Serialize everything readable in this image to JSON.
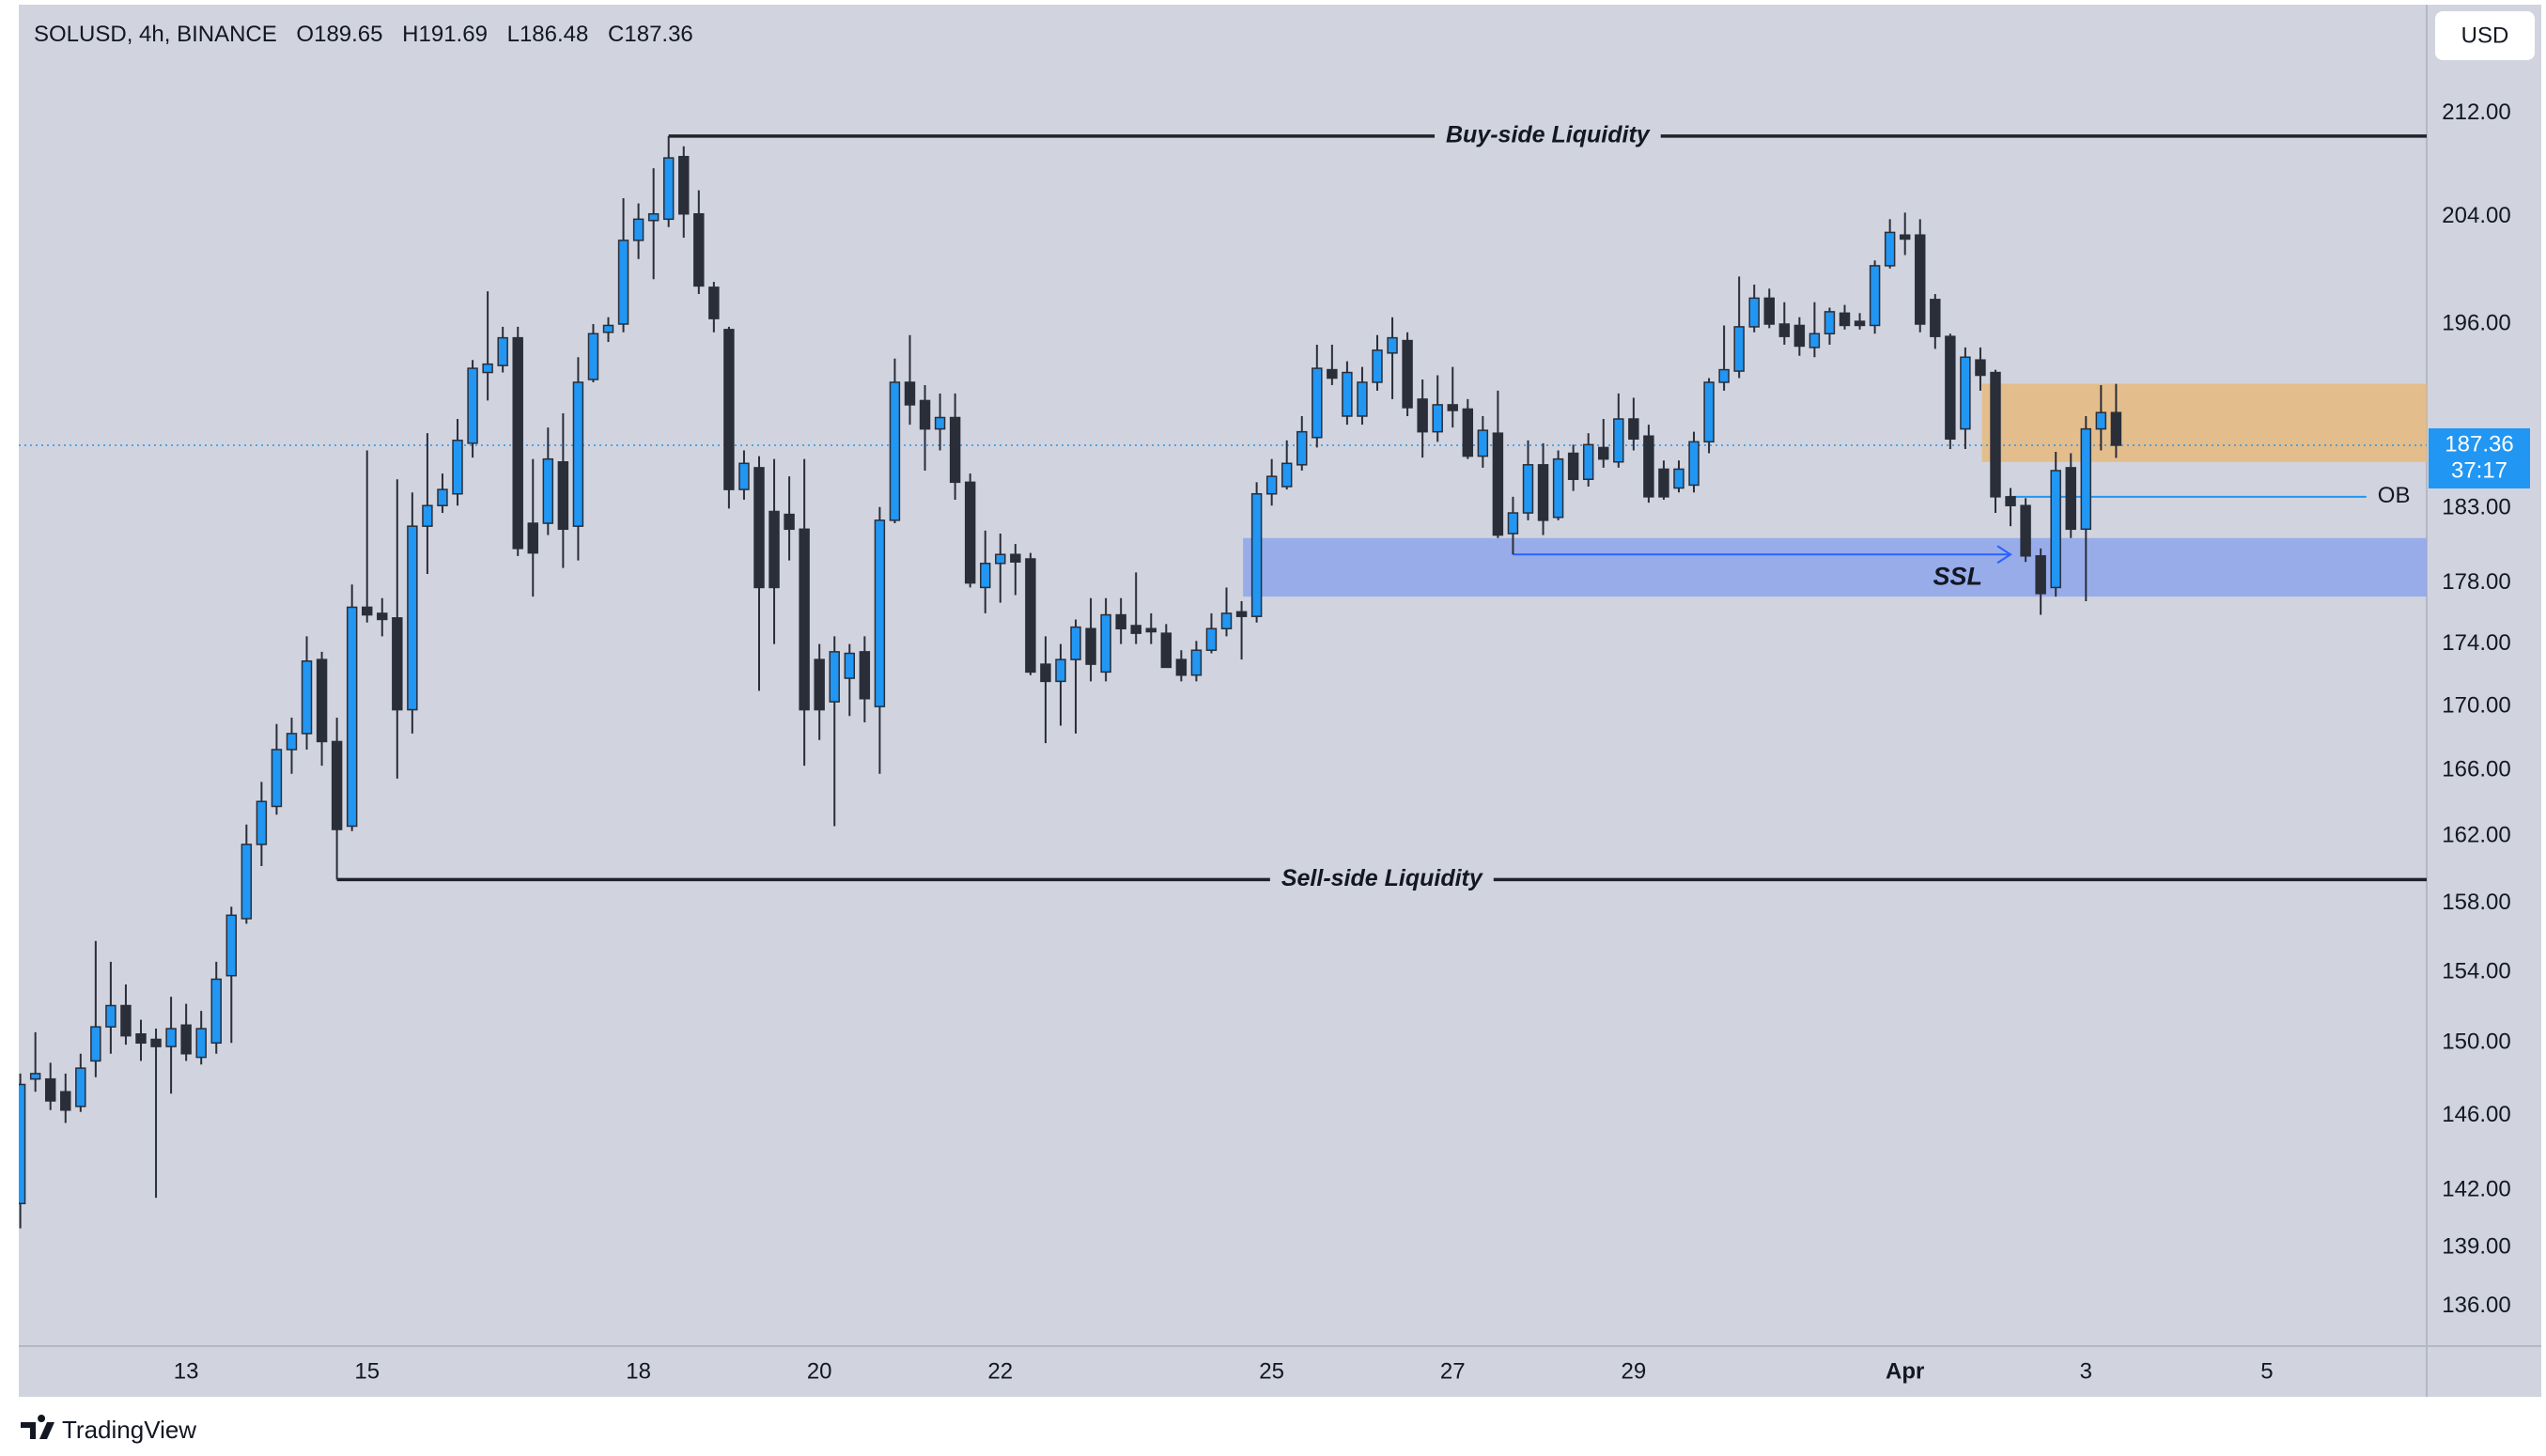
{
  "chart_data": {
    "type": "candlestick",
    "symbol": "SOLUSD, 4h, BINANCE",
    "ohlc_labels": [
      "O",
      "H",
      "L",
      "C"
    ],
    "currency": "USD",
    "countdown": "37:17",
    "up_color": "#2196f3",
    "down_color": "#2a2e39",
    "log_scale": true,
    "grid": false,
    "ylim": [
      134,
      220.5
    ],
    "yticks": [
      {
        "value": 136,
        "label": "136.00"
      },
      {
        "value": 139,
        "label": "139.00"
      },
      {
        "value": 142,
        "label": "142.00"
      },
      {
        "value": 146,
        "label": "146.00"
      },
      {
        "value": 150,
        "label": "150.00"
      },
      {
        "value": 154,
        "label": "154.00"
      },
      {
        "value": 158,
        "label": "158.00"
      },
      {
        "value": 162,
        "label": "162.00"
      },
      {
        "value": 166,
        "label": "166.00"
      },
      {
        "value": 170,
        "label": "170.00"
      },
      {
        "value": 174,
        "label": "174.00"
      },
      {
        "value": 178,
        "label": "178.00"
      },
      {
        "value": 183,
        "label": "183.00"
      },
      {
        "value": 196,
        "label": "196.00"
      },
      {
        "value": 204,
        "label": "204.00"
      },
      {
        "value": 212,
        "label": "212.00"
      }
    ],
    "xlim": [
      -0.1,
      159.6
    ],
    "xticks": [
      {
        "value": 11,
        "label": "13"
      },
      {
        "value": 23,
        "label": "15"
      },
      {
        "value": 41,
        "label": "18"
      },
      {
        "value": 53,
        "label": "20"
      },
      {
        "value": 65,
        "label": "22"
      },
      {
        "value": 83,
        "label": "25"
      },
      {
        "value": 95,
        "label": "27"
      },
      {
        "value": 107,
        "label": "29"
      },
      {
        "value": 125,
        "label": "Apr"
      },
      {
        "value": 137,
        "label": "3"
      },
      {
        "value": 149,
        "label": "5"
      }
    ],
    "candles": [
      [
        141.3,
        148.3,
        140,
        147.7
      ],
      [
        148,
        150.6,
        147.3,
        148.3
      ],
      [
        148,
        148.9,
        146.3,
        146.8
      ],
      [
        147.3,
        148.3,
        145.6,
        146.3
      ],
      [
        146.5,
        149.4,
        146.2,
        148.6
      ],
      [
        149,
        155.8,
        148.1,
        150.9
      ],
      [
        150.9,
        154.6,
        149.4,
        152.1
      ],
      [
        152.1,
        153.3,
        149.9,
        150.4
      ],
      [
        150.5,
        151.3,
        149,
        150
      ],
      [
        150.2,
        150.8,
        141.6,
        149.8
      ],
      [
        149.8,
        152.6,
        147.2,
        150.8
      ],
      [
        151,
        152.2,
        149,
        149.4
      ],
      [
        149.2,
        151.8,
        148.8,
        150.8
      ],
      [
        150,
        154.6,
        149.4,
        153.6
      ],
      [
        153.8,
        157.8,
        150,
        157.3
      ],
      [
        157.1,
        162.7,
        156.8,
        161.5
      ],
      [
        161.5,
        165.3,
        160.2,
        164.1
      ],
      [
        163.8,
        168.9,
        163.3,
        167.3
      ],
      [
        167.3,
        169.3,
        165.8,
        168.3
      ],
      [
        168.3,
        174.5,
        167.3,
        172.9
      ],
      [
        173,
        173.5,
        166.3,
        167.8
      ],
      [
        167.8,
        169.3,
        159.4,
        162.4
      ],
      [
        162.6,
        177.9,
        162.3,
        176.4
      ],
      [
        176.4,
        187,
        175.4,
        175.9
      ],
      [
        176,
        177,
        174.5,
        175.6
      ],
      [
        175.7,
        185,
        165.5,
        169.8
      ],
      [
        169.8,
        184.1,
        168.3,
        181.8
      ],
      [
        181.8,
        188.2,
        178.6,
        183.2
      ],
      [
        183.2,
        185.4,
        182.7,
        184.3
      ],
      [
        184,
        189.2,
        183.2,
        187.7
      ],
      [
        187.5,
        193.4,
        186.5,
        192.8
      ],
      [
        192.5,
        198.4,
        190.5,
        193.1
      ],
      [
        193,
        195.8,
        192.5,
        195
      ],
      [
        195,
        195.8,
        179.8,
        180.3
      ],
      [
        182,
        186.4,
        177.1,
        180
      ],
      [
        182,
        188.6,
        181.2,
        186.4
      ],
      [
        186.2,
        189.6,
        179,
        181.6
      ],
      [
        181.8,
        193.6,
        179.5,
        191.8
      ],
      [
        192,
        196,
        191.8,
        195.3
      ],
      [
        195.4,
        196.5,
        194.7,
        195.9
      ],
      [
        196,
        205.4,
        195.4,
        202.2
      ],
      [
        202.2,
        205,
        200.8,
        203.8
      ],
      [
        203.7,
        207.7,
        199.3,
        204.2
      ],
      [
        203.8,
        210.2,
        203.2,
        208.5
      ],
      [
        208.6,
        209.4,
        202.4,
        204.2
      ],
      [
        204.2,
        206,
        198.2,
        198.8
      ],
      [
        198.7,
        199.1,
        195.4,
        196.4
      ],
      [
        195.6,
        195.8,
        183,
        184.3
      ],
      [
        184.3,
        187,
        183.6,
        186.1
      ],
      [
        185.8,
        186.6,
        171,
        177.7
      ],
      [
        182.8,
        186.4,
        174,
        177.7
      ],
      [
        182.6,
        185.2,
        179.5,
        181.6
      ],
      [
        181.6,
        186.4,
        166.3,
        169.8
      ],
      [
        173,
        174,
        167.9,
        169.8
      ],
      [
        170.3,
        174.5,
        162.6,
        173.5
      ],
      [
        171.8,
        174,
        169.4,
        173.4
      ],
      [
        173.5,
        174.5,
        169,
        170.5
      ],
      [
        170,
        183.1,
        165.8,
        182.2
      ],
      [
        182.2,
        193.5,
        182,
        191.8
      ],
      [
        191.8,
        195.2,
        188.8,
        190.2
      ],
      [
        190.5,
        191.6,
        185.6,
        188.5
      ],
      [
        188.5,
        191,
        187,
        189.3
      ],
      [
        189.3,
        191,
        183.6,
        184.8
      ],
      [
        184.8,
        185.4,
        177.7,
        178
      ],
      [
        177.7,
        181.5,
        176,
        179.3
      ],
      [
        179.3,
        181.3,
        176.7,
        179.9
      ],
      [
        179.9,
        180.6,
        177.2,
        179.4
      ],
      [
        179.6,
        180,
        172,
        172.2
      ],
      [
        172.7,
        174.5,
        167.7,
        171.6
      ],
      [
        171.6,
        174,
        168.8,
        173
      ],
      [
        173,
        175.6,
        168.3,
        175.1
      ],
      [
        175,
        177,
        171.6,
        172.7
      ],
      [
        172.2,
        177,
        171.6,
        175.9
      ],
      [
        175.9,
        177,
        174,
        175
      ],
      [
        175.2,
        178.7,
        174,
        174.7
      ],
      [
        175,
        176,
        174,
        174.8
      ],
      [
        174.7,
        175.3,
        172.5,
        172.5
      ],
      [
        173,
        173.6,
        171.6,
        172
      ],
      [
        172,
        174.2,
        171.6,
        173.6
      ],
      [
        173.6,
        176,
        173.4,
        175
      ],
      [
        175,
        177.7,
        174.5,
        176
      ],
      [
        176.1,
        176.8,
        173,
        175.8
      ],
      [
        175.8,
        184.8,
        175.4,
        184
      ],
      [
        184,
        186.4,
        183.2,
        185.2
      ],
      [
        184.5,
        187.7,
        184.3,
        186.1
      ],
      [
        186,
        189.4,
        185.6,
        188.3
      ],
      [
        187.9,
        194.5,
        187.2,
        192.8
      ],
      [
        192.7,
        194.5,
        191.6,
        192.1
      ],
      [
        189.4,
        193.3,
        188.8,
        192.5
      ],
      [
        189.4,
        192.9,
        188.8,
        191.8
      ],
      [
        191.8,
        195.2,
        191.2,
        194.1
      ],
      [
        193.9,
        196.5,
        190.6,
        195
      ],
      [
        194.8,
        195.4,
        189.4,
        190
      ],
      [
        190.6,
        192,
        186.5,
        188.3
      ],
      [
        188.3,
        192.3,
        187.6,
        190.2
      ],
      [
        190.2,
        192.9,
        188.6,
        189.8
      ],
      [
        189.9,
        190.6,
        186.4,
        186.6
      ],
      [
        186.6,
        189.4,
        185.8,
        188.4
      ],
      [
        188.2,
        191.2,
        181,
        181.2
      ],
      [
        181.3,
        183.8,
        179.9,
        182.7
      ],
      [
        182.7,
        187.7,
        182.2,
        186
      ],
      [
        186,
        187.5,
        181.2,
        182.2
      ],
      [
        182.4,
        187,
        182.2,
        186.4
      ],
      [
        186.8,
        187.4,
        184.2,
        185
      ],
      [
        185,
        188.2,
        184.5,
        187.4
      ],
      [
        187.2,
        189.2,
        185.8,
        186.4
      ],
      [
        186.2,
        191,
        185.8,
        189.2
      ],
      [
        189.2,
        190.7,
        187,
        187.8
      ],
      [
        188,
        188.8,
        183.4,
        183.8
      ],
      [
        185.7,
        186.3,
        183.6,
        183.8
      ],
      [
        184.4,
        186.3,
        184.1,
        185.7
      ],
      [
        184.6,
        188.3,
        184.1,
        187.6
      ],
      [
        187.6,
        192.1,
        186.8,
        191.8
      ],
      [
        191.8,
        195.9,
        191.2,
        192.7
      ],
      [
        192.6,
        199.5,
        192.1,
        195.8
      ],
      [
        195.8,
        198.9,
        195.4,
        197.9
      ],
      [
        197.9,
        198.6,
        195.7,
        196
      ],
      [
        196,
        197.6,
        194.5,
        195.1
      ],
      [
        195.9,
        196.5,
        193.7,
        194.4
      ],
      [
        194.3,
        197.6,
        193.6,
        195.3
      ],
      [
        195.3,
        197.2,
        194.5,
        196.9
      ],
      [
        196.8,
        197.4,
        195.6,
        195.9
      ],
      [
        196.2,
        196.8,
        195.6,
        195.9
      ],
      [
        195.9,
        200.7,
        195.3,
        200.3
      ],
      [
        200.3,
        203.8,
        200.1,
        202.8
      ],
      [
        202.6,
        204.3,
        201.1,
        202.3
      ],
      [
        202.6,
        203.8,
        195.4,
        196
      ],
      [
        197.8,
        198.2,
        194.2,
        195.1
      ],
      [
        195.1,
        195.3,
        187.1,
        187.8
      ],
      [
        188.5,
        194.3,
        187.1,
        193.6
      ],
      [
        193.4,
        194.3,
        191.2,
        192.3
      ],
      [
        192.5,
        192.7,
        182.7,
        183.8
      ],
      [
        183.8,
        184.4,
        181.8,
        183.2
      ],
      [
        183.2,
        183.7,
        179.4,
        179.8
      ],
      [
        179.8,
        180.3,
        175.9,
        177.3
      ],
      [
        177.7,
        186.9,
        177.1,
        185.6
      ],
      [
        185.8,
        186.8,
        181,
        181.6
      ],
      [
        181.6,
        189.4,
        176.8,
        188.5
      ],
      [
        188.5,
        191.6,
        187,
        189.65
      ],
      [
        189.65,
        191.69,
        186.48,
        187.36
      ]
    ],
    "levels": [
      {
        "text": "Buy-side Liquidity",
        "price": 210.2,
        "start": 43
      },
      {
        "text": "Sell-side Liquidity",
        "price": 159.4,
        "start": 21
      }
    ],
    "zones": [
      {
        "top": 191.7,
        "bottom": 186.2,
        "start": 130.1,
        "color": "#e6b97e"
      },
      {
        "top": 181,
        "bottom": 177.1,
        "start": 81.1,
        "color": "#8ea5ec"
      }
    ],
    "ob_line": {
      "text": "OB",
      "price": 183.8,
      "start": 131.8,
      "end": 155.6,
      "color": "#2196f3"
    },
    "ssl_arrow": {
      "text": "SSL",
      "price": 179.9,
      "start": 99,
      "end": 132,
      "color": "#2962ff"
    }
  },
  "footer": {
    "brand": "TradingView"
  }
}
